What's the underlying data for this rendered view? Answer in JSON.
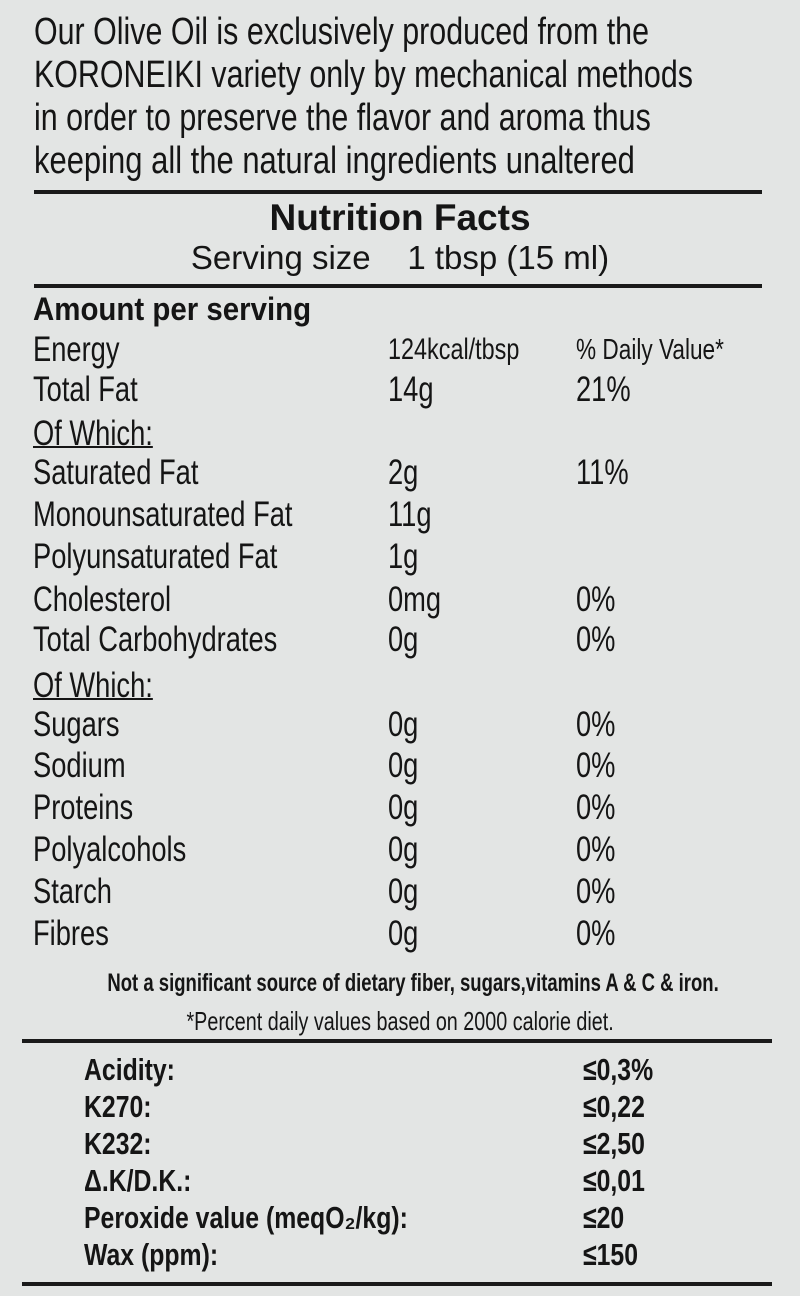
{
  "intro": {
    "lines": [
      "Our Olive Oil is exclusively produced from the",
      "KORONEIKI variety only by mechanical methods",
      "in order to preserve the flavor and aroma thus",
      "keeping all the natural ingredients unaltered"
    ]
  },
  "nutrition": {
    "title": "Nutrition Facts",
    "serving_label": "Serving size",
    "serving_value": "1 tbsp (15 ml)",
    "amount_header": "Amount per serving",
    "rows": [
      {
        "name": "Energy",
        "amount": "124kcal/tbsp",
        "dv": "% Daily Value*"
      },
      {
        "name": "Total Fat",
        "amount": "14g",
        "dv": "21%"
      },
      {
        "name": "Of Which:",
        "amount": "",
        "dv": ""
      },
      {
        "name": "Saturated Fat",
        "amount": "2g",
        "dv": "11%"
      },
      {
        "name": "Monounsaturated Fat",
        "amount": "11g",
        "dv": ""
      },
      {
        "name": "Polyunsaturated Fat",
        "amount": "1g",
        "dv": ""
      },
      {
        "name": "Cholesterol",
        "amount": "0mg",
        "dv": "0%"
      },
      {
        "name": "Total Carbohydrates",
        "amount": "0g",
        "dv": "0%"
      },
      {
        "name": "Of Which:",
        "amount": "",
        "dv": ""
      },
      {
        "name": "Sugars",
        "amount": "0g",
        "dv": "0%"
      },
      {
        "name": "Sodium",
        "amount": "0g",
        "dv": "0%"
      },
      {
        "name": "Proteins",
        "amount": "0g",
        "dv": "0%"
      },
      {
        "name": "Polyalcohols",
        "amount": "0g",
        "dv": "0%"
      },
      {
        "name": "Starch",
        "amount": "0g",
        "dv": "0%"
      },
      {
        "name": "Fibres",
        "amount": "0g",
        "dv": "0%"
      }
    ],
    "note": "Not a significant source of dietary  fiber, sugars,vitamins A & C & iron.",
    "footnote": "*Percent daily values based on 2000 calorie diet."
  },
  "specs": [
    {
      "name": "Acidity:",
      "value": "≤0,3%"
    },
    {
      "name": "K270:",
      "value": "≤0,22"
    },
    {
      "name": "K232:",
      "value": "≤2,50"
    },
    {
      "name": "Δ.K/D.K.:",
      "value": "≤0,01"
    },
    {
      "name": "Peroxide value (meqO₂/kg):",
      "value": "≤20"
    },
    {
      "name": "Wax (ppm):",
      "value": "≤150"
    }
  ]
}
